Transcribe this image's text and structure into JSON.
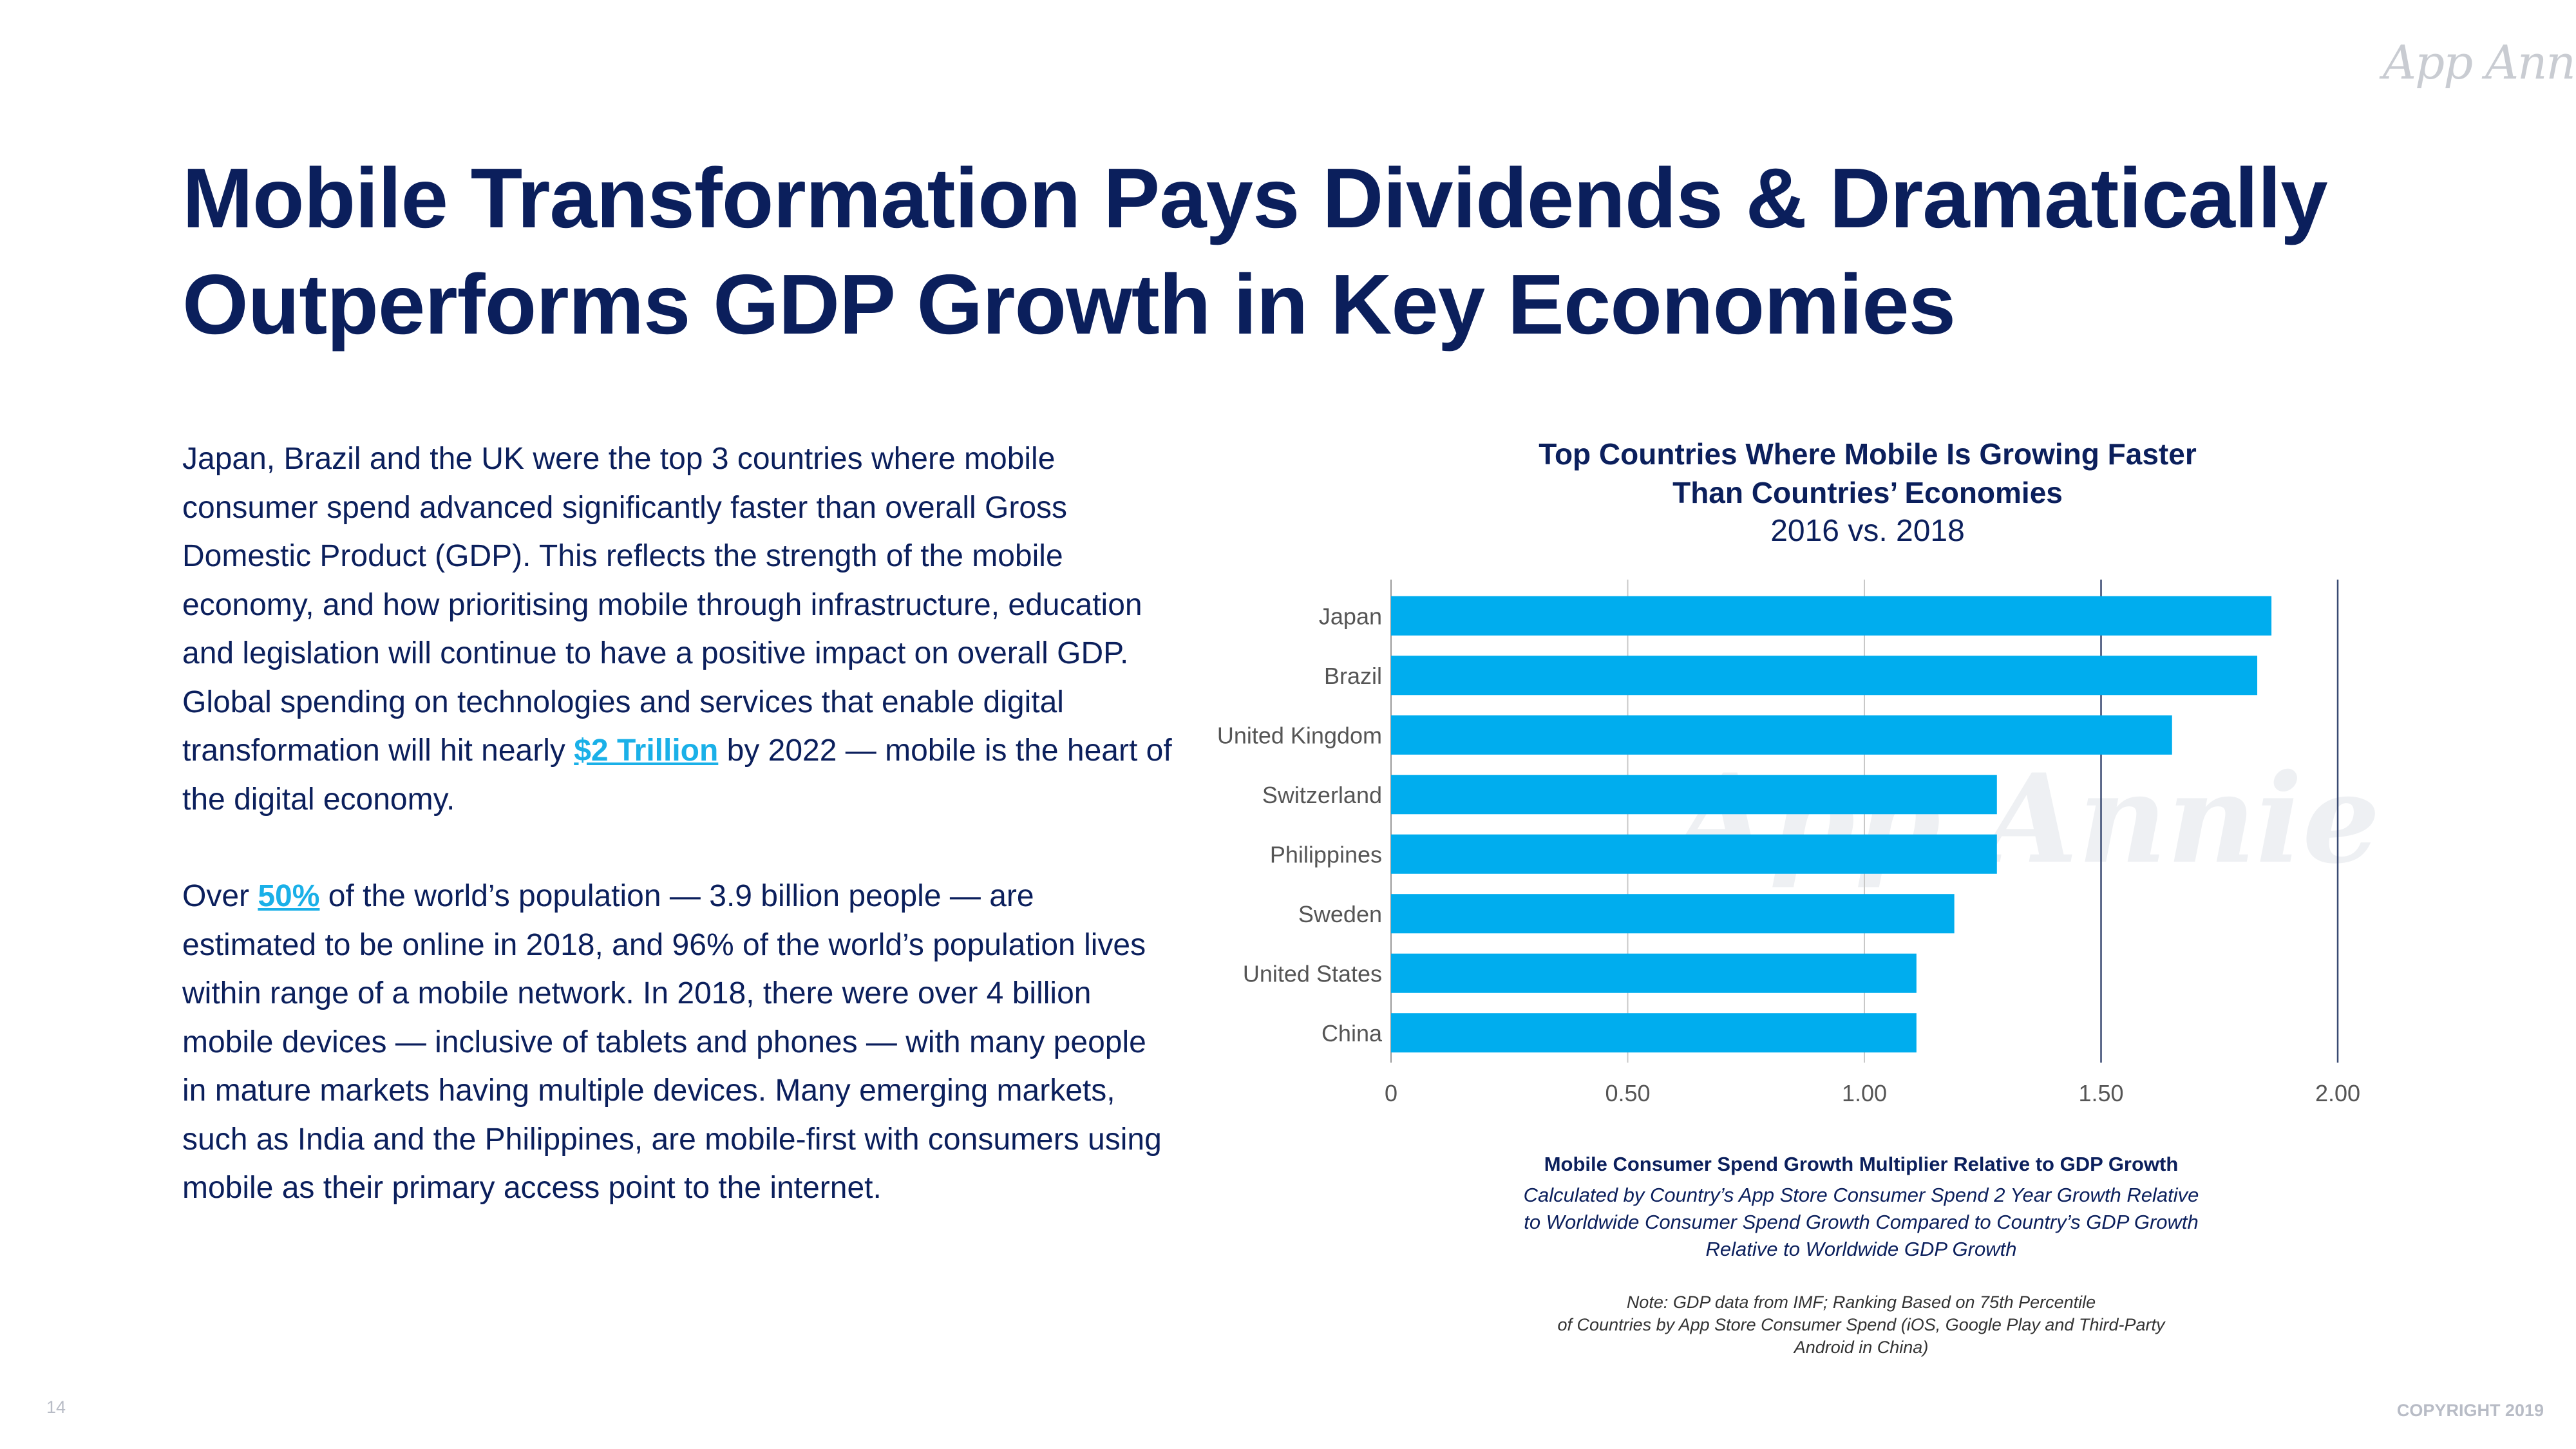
{
  "logo": "App Annie",
  "title": "Mobile Transformation Pays Dividends & Dramatically Outperforms GDP Growth in Key Economies",
  "body": {
    "p1_a": "Japan, Brazil and the UK were the top 3 countries where mobile consumer spend advanced significantly faster than overall Gross Domestic Product (GDP). This reflects the strength of the mobile economy, and how prioritising mobile through infrastructure, education and legislation will continue to have a positive impact on overall GDP. Global spending on technologies and services that enable digital transformation will hit nearly ",
    "p1_link": "$2 Trillion",
    "p1_b": " by 2022 — mobile is the heart of the digital economy.",
    "p2_a": "Over ",
    "p2_link": "50%",
    "p2_b": " of the world’s population — 3.9 billion people — are estimated to be online in 2018, and 96% of the world’s population lives within range of a mobile network. In 2018, there were over 4 billion mobile devices — inclusive of tablets and phones — with many people in mature markets having multiple devices. Many emerging markets, such as India and the Philippines, are mobile-first with consumers using mobile as their primary access point to the internet."
  },
  "chart_data": {
    "type": "bar",
    "orientation": "horizontal",
    "title_line1": "Top Countries Where Mobile Is Growing Faster",
    "title_line2": "Than Countries’ Economies",
    "subtitle": "2016 vs. 2018",
    "categories": [
      "Japan",
      "Brazil",
      "United Kingdom",
      "Switzerland",
      "Philippines",
      "Sweden",
      "United States",
      "China"
    ],
    "values": [
      1.86,
      1.83,
      1.65,
      1.28,
      1.28,
      1.19,
      1.11,
      1.11
    ],
    "xlim": [
      0,
      2.0
    ],
    "xticks": [
      "0",
      "0.50",
      "1.00",
      "1.50",
      "2.00"
    ],
    "xtick_values": [
      0,
      0.5,
      1.0,
      1.5,
      2.0
    ],
    "grid": true,
    "bar_color": "#00adee",
    "xlabel": "Mobile Consumer Spend Growth Multiplier Relative to GDP Growth",
    "xlabel_sub_1": "Calculated by Country’s App Store Consumer Spend 2 Year Growth Relative",
    "xlabel_sub_2": "to Worldwide Consumer Spend Growth Compared to Country’s GDP Growth",
    "xlabel_sub_3": "Relative to Worldwide GDP Growth",
    "note_1": "Note: GDP data from IMF; Ranking Based on 75th Percentile",
    "note_2": "of Countries by App Store Consumer Spend (iOS, Google Play and Third-Party",
    "note_3": "Android in China)"
  },
  "footer": {
    "page_number": "14",
    "copyright": "COPYRIGHT 2019"
  }
}
